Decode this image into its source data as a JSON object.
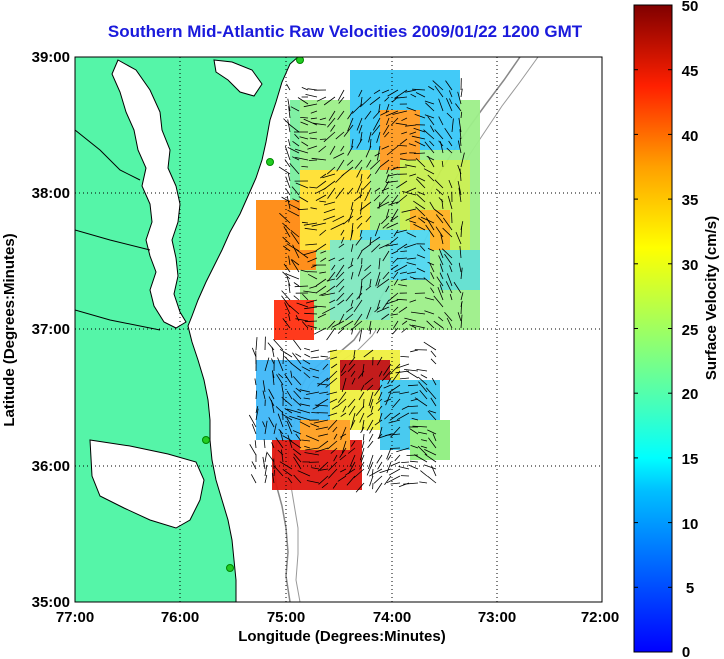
{
  "map": {
    "title": "Southern Mid-Atlantic Raw Velocities 2009/01/22 1200 GMT",
    "xlabel": "Longitude (Degrees:Minutes)",
    "ylabel": "Latitude (Degrees:Minutes)",
    "x_ticks": [
      "77:00",
      "76:00",
      "75:00",
      "74:00",
      "73:00",
      "72:00"
    ],
    "y_ticks": [
      "39:00",
      "38:00",
      "37:00",
      "36:00",
      "35:00"
    ],
    "lon_range": [
      -77,
      -72
    ],
    "lat_range": [
      35,
      39
    ],
    "grid": "dotted",
    "land_color": "#55f5a8",
    "coast_color": "#000000",
    "bathymetry_color": "#888888",
    "station_color": "#22cc22"
  },
  "colorbar": {
    "label": "Surface Velocity (cm/s)",
    "ticks": [
      "50",
      "45",
      "40",
      "35",
      "30",
      "25",
      "20",
      "15",
      "10",
      "5",
      "0"
    ],
    "range": [
      0,
      50
    ],
    "colormap": "jet",
    "position": "right"
  }
}
